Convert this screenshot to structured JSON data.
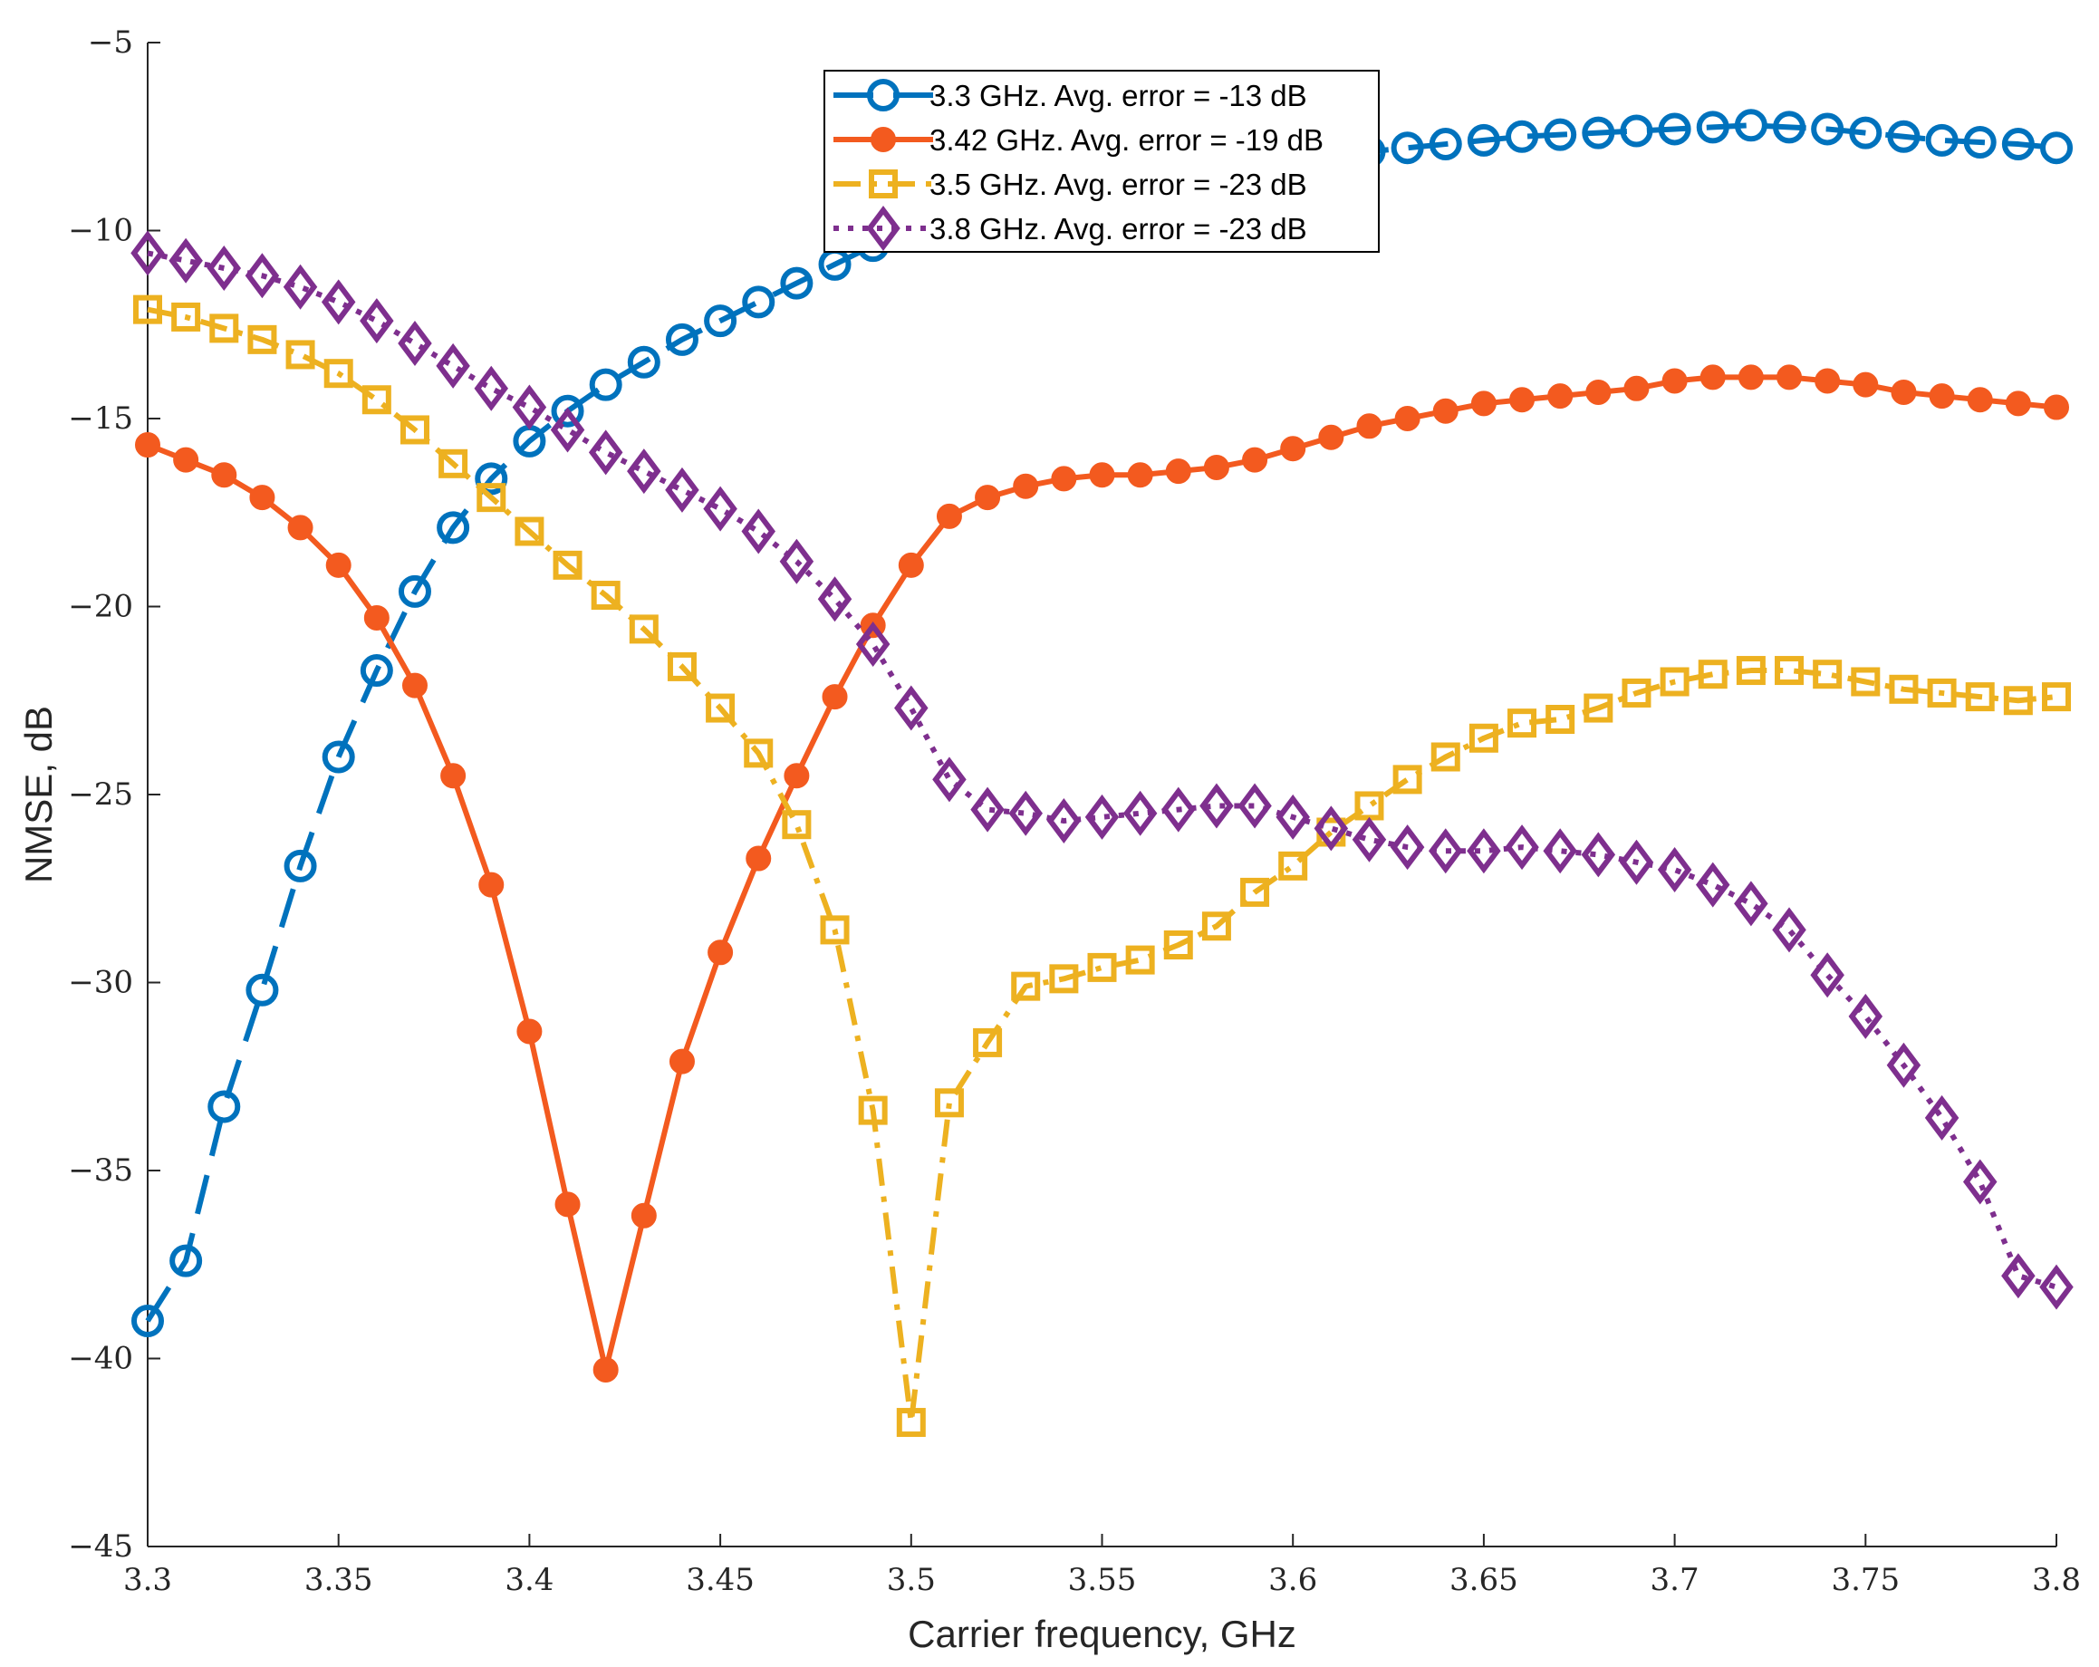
{
  "chart_data": {
    "type": "line",
    "title": "",
    "xlabel": "Carrier frequency, GHz",
    "ylabel": "NMSE, dB",
    "xlim": [
      3.3,
      3.8
    ],
    "ylim": [
      -45,
      -5
    ],
    "xticks": [
      3.3,
      3.35,
      3.4,
      3.45,
      3.5,
      3.55,
      3.6,
      3.65,
      3.7,
      3.75,
      3.8
    ],
    "xtick_labels": [
      "3.3",
      "3.35",
      "3.4",
      "3.45",
      "3.5",
      "3.55",
      "3.6",
      "3.65",
      "3.7",
      "3.75",
      "3.8"
    ],
    "yticks": [
      -5,
      -10,
      -15,
      -20,
      -25,
      -30,
      -35,
      -40,
      -45
    ],
    "ytick_labels": [
      "−5",
      "−10",
      "−15",
      "−20",
      "−25",
      "−30",
      "−35",
      "−40",
      "−45"
    ],
    "grid": false,
    "legend_position": "top-center",
    "x": [
      3.3,
      3.31,
      3.32,
      3.33,
      3.34,
      3.35,
      3.36,
      3.37,
      3.38,
      3.39,
      3.4,
      3.41,
      3.42,
      3.43,
      3.44,
      3.45,
      3.46,
      3.47,
      3.48,
      3.49,
      3.5,
      3.51,
      3.52,
      3.53,
      3.54,
      3.55,
      3.56,
      3.57,
      3.58,
      3.59,
      3.6,
      3.61,
      3.62,
      3.63,
      3.64,
      3.65,
      3.66,
      3.67,
      3.68,
      3.69,
      3.7,
      3.71,
      3.72,
      3.73,
      3.74,
      3.75,
      3.76,
      3.77,
      3.78,
      3.79,
      3.8
    ],
    "series": [
      {
        "name": "3.3 GHz. Avg. error = -13 dB",
        "color": "#0072BD",
        "marker": "circle",
        "linestyle": "dashed",
        "values": [
          -39.0,
          -37.4,
          -33.3,
          -30.2,
          -26.9,
          -24.0,
          -21.7,
          -19.6,
          -17.9,
          -16.6,
          -15.6,
          -14.8,
          -14.1,
          -13.5,
          -12.9,
          -12.4,
          -11.9,
          -11.4,
          -10.9,
          -10.4,
          -10.0,
          -9.7,
          -9.4,
          -9.1,
          -8.9,
          -8.7,
          -8.6,
          -8.4,
          -8.3,
          -8.2,
          -8.1,
          -8.0,
          -7.9,
          -7.8,
          -7.7,
          -7.6,
          -7.5,
          -7.45,
          -7.4,
          -7.35,
          -7.3,
          -7.25,
          -7.2,
          -7.25,
          -7.3,
          -7.4,
          -7.5,
          -7.6,
          -7.65,
          -7.7,
          -7.8
        ]
      },
      {
        "name": "3.42 GHz. Avg. error = -19 dB",
        "color": "#F35A1F",
        "marker": "dot",
        "linestyle": "solid",
        "values": [
          -15.7,
          -16.1,
          -16.5,
          -17.1,
          -17.9,
          -18.9,
          -20.3,
          -22.1,
          -24.5,
          -27.4,
          -31.3,
          -35.9,
          -40.3,
          -36.2,
          -32.1,
          -29.2,
          -26.7,
          -24.5,
          -22.4,
          -20.5,
          -18.9,
          -17.6,
          -17.1,
          -16.8,
          -16.6,
          -16.5,
          -16.5,
          -16.4,
          -16.3,
          -16.1,
          -15.8,
          -15.5,
          -15.2,
          -15.0,
          -14.8,
          -14.6,
          -14.5,
          -14.4,
          -14.3,
          -14.2,
          -14.0,
          -13.9,
          -13.9,
          -13.9,
          -14.0,
          -14.1,
          -14.3,
          -14.4,
          -14.5,
          -14.6,
          -14.7
        ]
      },
      {
        "name": "3.5 GHz. Avg. error = -23 dB",
        "color": "#EDB120",
        "marker": "square",
        "linestyle": "dashdot",
        "values": [
          -12.1,
          -12.3,
          -12.6,
          -12.9,
          -13.3,
          -13.8,
          -14.5,
          -15.3,
          -16.2,
          -17.1,
          -18.0,
          -18.9,
          -19.7,
          -20.6,
          -21.6,
          -22.7,
          -23.9,
          -25.8,
          -28.6,
          -33.4,
          -41.7,
          -33.2,
          -31.6,
          -30.1,
          -29.9,
          -29.6,
          -29.4,
          -29.0,
          -28.5,
          -27.6,
          -26.9,
          -26.0,
          -25.3,
          -24.6,
          -24.0,
          -23.5,
          -23.1,
          -23.0,
          -22.7,
          -22.3,
          -22.0,
          -21.8,
          -21.7,
          -21.7,
          -21.8,
          -22.0,
          -22.2,
          -22.3,
          -22.4,
          -22.5,
          -22.4
        ]
      },
      {
        "name": "3.8 GHz. Avg. error = -23 dB",
        "color": "#7E2F8E",
        "marker": "diamond",
        "linestyle": "dotted",
        "values": [
          -10.6,
          -10.8,
          -11.0,
          -11.2,
          -11.5,
          -11.9,
          -12.4,
          -13.0,
          -13.6,
          -14.2,
          -14.7,
          -15.3,
          -15.9,
          -16.4,
          -16.9,
          -17.4,
          -18.0,
          -18.8,
          -19.8,
          -21.0,
          -22.7,
          -24.6,
          -25.4,
          -25.5,
          -25.7,
          -25.6,
          -25.5,
          -25.4,
          -25.3,
          -25.3,
          -25.6,
          -25.9,
          -26.2,
          -26.4,
          -26.5,
          -26.5,
          -26.4,
          -26.5,
          -26.6,
          -26.8,
          -27.0,
          -27.4,
          -27.9,
          -28.6,
          -29.8,
          -30.9,
          -32.2,
          -33.6,
          -35.3,
          -37.8,
          -38.1
        ]
      }
    ]
  }
}
